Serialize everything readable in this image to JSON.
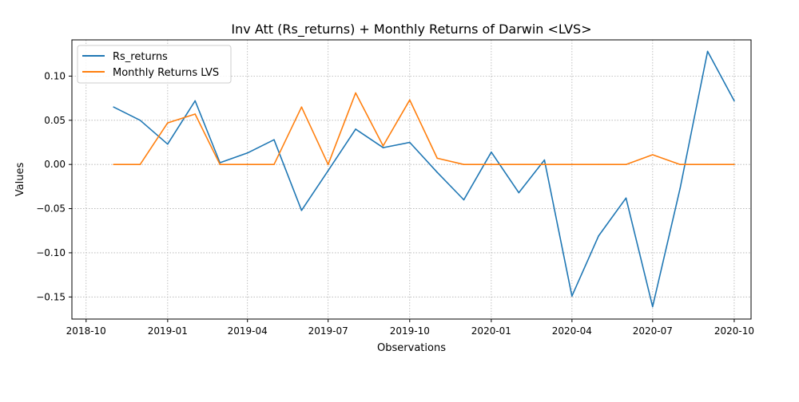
{
  "chart_data": {
    "type": "line",
    "title": "Inv Att (Rs_returns) + Monthly Returns of Darwin <LVS>",
    "xlabel": "Observations",
    "ylabel": "Values",
    "x_axis_kind": "date",
    "x": [
      "2018-11",
      "2018-12",
      "2019-01",
      "2019-02",
      "2019-03",
      "2019-04",
      "2019-05",
      "2019-06",
      "2019-07",
      "2019-08",
      "2019-09",
      "2019-10",
      "2019-11",
      "2019-12",
      "2020-01",
      "2020-02",
      "2020-03",
      "2020-04",
      "2020-05",
      "2020-06",
      "2020-07",
      "2020-08",
      "2020-09",
      "2020-10"
    ],
    "xlim": [
      "2018-09-15",
      "2020-10-20"
    ],
    "ylim": [
      -0.175,
      0.141
    ],
    "xticks": [
      "2018-10",
      "2019-01",
      "2019-04",
      "2019-07",
      "2019-10",
      "2020-01",
      "2020-04",
      "2020-07",
      "2020-10"
    ],
    "yticks": [
      -0.15,
      -0.1,
      -0.05,
      0.0,
      0.05,
      0.1
    ],
    "ytick_labels": [
      "−0.15",
      "−0.10",
      "−0.05",
      "0.00",
      "0.05",
      "0.10"
    ],
    "grid": true,
    "legend_position": "top-left",
    "series": [
      {
        "name": "Rs_returns",
        "color": "#1f77b4",
        "values": [
          0.065,
          0.05,
          0.023,
          0.072,
          0.002,
          0.013,
          0.028,
          -0.052,
          -0.007,
          0.04,
          0.019,
          0.025,
          -0.009,
          -0.04,
          0.014,
          -0.032,
          0.005,
          -0.149,
          -0.081,
          -0.038,
          -0.161,
          -0.027,
          0.128,
          0.072
        ]
      },
      {
        "name": "Monthly Returns LVS",
        "color": "#ff7f0e",
        "values": [
          0.0,
          0.0,
          0.047,
          0.057,
          0.0,
          0.0,
          0.0,
          0.065,
          0.0,
          0.081,
          0.021,
          0.073,
          0.007,
          0.0,
          0.0,
          0.0,
          0.0,
          0.0,
          0.0,
          0.0,
          0.011,
          0.0,
          0.0,
          0.0
        ]
      }
    ]
  }
}
